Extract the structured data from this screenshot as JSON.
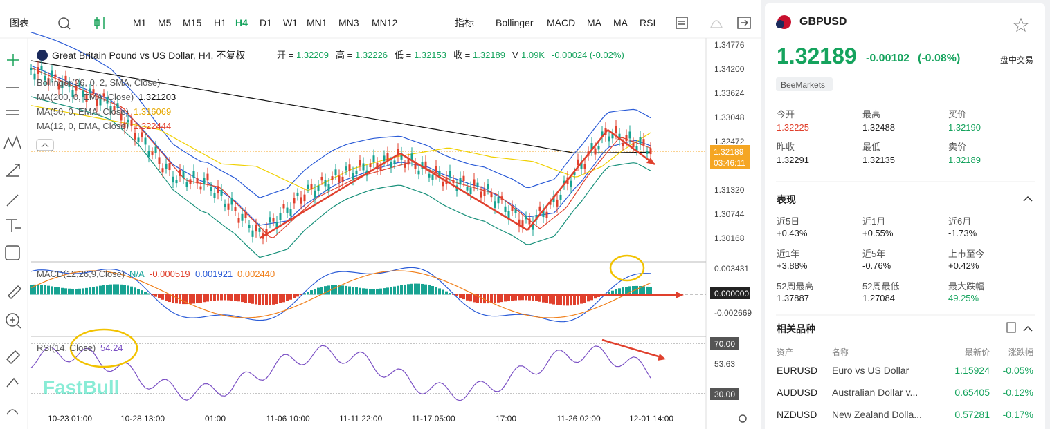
{
  "toolbar": {
    "chart_menu": "图表",
    "timeframes": [
      "M1",
      "M5",
      "M15",
      "H1",
      "H4",
      "D1",
      "W1",
      "MN1",
      "MN3",
      "MN12"
    ],
    "indicator_menu": "指标",
    "indicators": [
      "Bollinger",
      "MACD",
      "MA",
      "MA",
      "RSI"
    ]
  },
  "chart": {
    "title": "Great Britain Pound vs US Dollar, H4, 不复权",
    "quote": [
      {
        "label": "开 =",
        "value": "1.32209"
      },
      {
        "label": "高 =",
        "value": "1.32226"
      },
      {
        "label": "低 =",
        "value": "1.32153"
      },
      {
        "label": "收 =",
        "value": "1.32189"
      },
      {
        "label": "V",
        "value": "1.09K"
      }
    ],
    "change": "-0.00024 (-0.02%)",
    "studies": [
      {
        "name": "Bollinger(26, 0, 2, SMA, Close)"
      },
      {
        "name": "MA(200, 0, EMA, Close)",
        "value": "1.321203"
      },
      {
        "name": "MA(50, 0, EMA, Close)",
        "value": "1.316069"
      },
      {
        "name": "MA(12, 0, EMA, Close)",
        "value": "1.322444"
      }
    ],
    "price_axis": [
      "1.34776",
      "1.34200",
      "1.33624",
      "1.33048",
      "1.32472",
      "1.31320",
      "1.30744",
      "1.30168"
    ],
    "last_price": "1.32189",
    "countdown": "03:46:11",
    "macd": {
      "name": "MACD(12,26,9,Close)",
      "values": [
        "N/A",
        "-0.000519",
        "0.001921",
        "0.002440"
      ],
      "axis": [
        "0.003431",
        "0.000000",
        "-0.002669"
      ]
    },
    "rsi": {
      "name": "RSI(14, Close)",
      "value": "54.24",
      "axis": [
        "70.00",
        "53.63",
        "30.00"
      ]
    },
    "time_axis": [
      "10-23 01:00",
      "10-28 13:00",
      "01:00",
      "11-06 10:00",
      "11-11 22:00",
      "11-17 05:00",
      "17:00",
      "11-26 02:00",
      "12-01 14:00"
    ],
    "watermark": "FastBull"
  },
  "panel": {
    "symbol": "GBPUSD",
    "price": "1.32189",
    "change": "-0.00102",
    "change_pct": "(-0.08%)",
    "status": "盘中交易",
    "broker": "BeeMarkets",
    "stats": [
      {
        "label": "今开",
        "value": "1.32225"
      },
      {
        "label": "最高",
        "value": "1.32488"
      },
      {
        "label": "买价",
        "value": "1.32190"
      },
      {
        "label": "昨收",
        "value": "1.32291"
      },
      {
        "label": "最低",
        "value": "1.32135"
      },
      {
        "label": "卖价",
        "value": "1.32189"
      }
    ],
    "performance_title": "表现",
    "performance": [
      {
        "label": "近5日",
        "value": "+0.43%"
      },
      {
        "label": "近1月",
        "value": "+0.55%"
      },
      {
        "label": "近6月",
        "value": "-1.73%"
      },
      {
        "label": "近1年",
        "value": "+3.88%"
      },
      {
        "label": "近5年",
        "value": "-0.76%"
      },
      {
        "label": "上市至今",
        "value": "+0.42%"
      },
      {
        "label": "52周最高",
        "value": "1.37887"
      },
      {
        "label": "52周最低",
        "value": "1.27084"
      },
      {
        "label": "最大跌幅",
        "value": "49.25%"
      }
    ],
    "related_title": "相关品种",
    "related_headers": [
      "资产",
      "名称",
      "最新价",
      "涨跌幅"
    ],
    "related": [
      [
        "EURUSD",
        "Euro vs US Dollar",
        "1.15924",
        "-0.05%"
      ],
      [
        "AUDUSD",
        "Australian Dollar v...",
        "0.65405",
        "-0.12%"
      ],
      [
        "NZDUSD",
        "New Zealand Dolla...",
        "0.57281",
        "-0.17%"
      ]
    ]
  }
}
